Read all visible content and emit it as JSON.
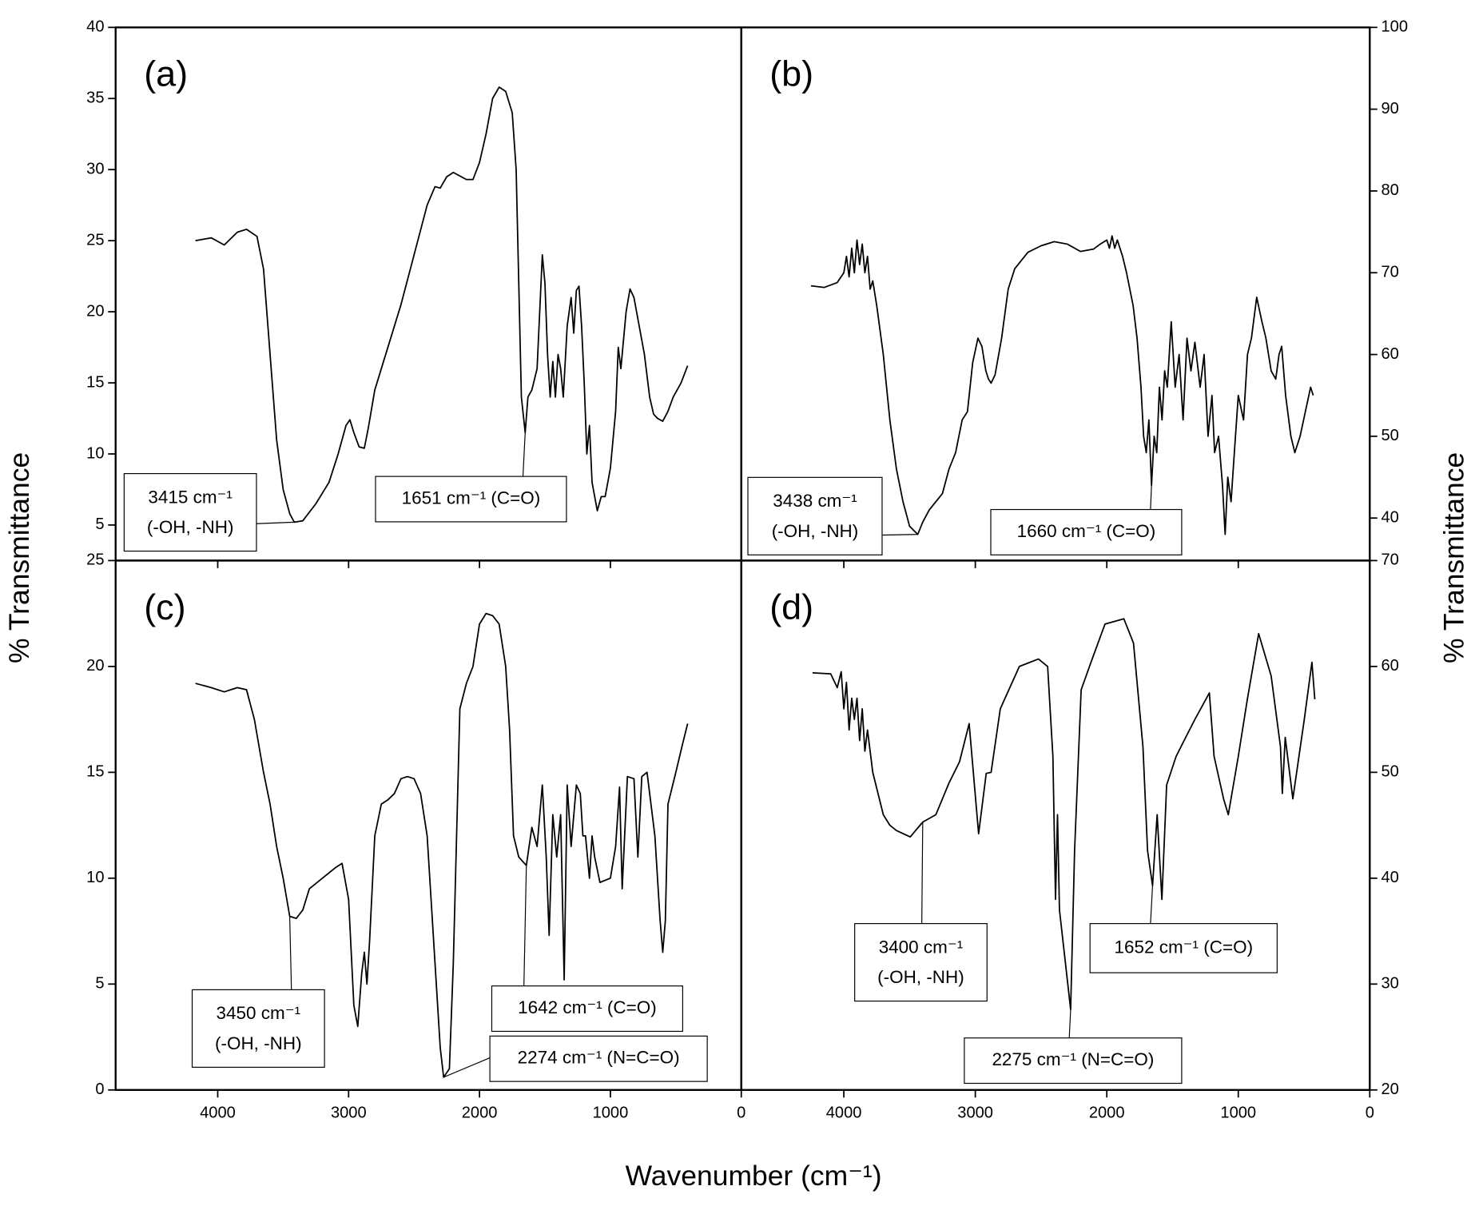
{
  "x_label": "Wavenumber (cm⁻¹)",
  "y_label": "% Transmittance",
  "chart_data": [
    {
      "type": "line",
      "title": "(a)",
      "color": "#000000",
      "xlim": [
        4780,
        0
      ],
      "ylim": [
        2.5,
        40
      ],
      "xticks": [
        4000,
        3000,
        2000,
        1000,
        0
      ],
      "yticks": [
        5,
        10,
        15,
        20,
        25,
        30,
        35,
        40
      ],
      "x": [
        4170,
        4050,
        3950,
        3850,
        3780,
        3700,
        3650,
        3600,
        3550,
        3500,
        3450,
        3415,
        3350,
        3250,
        3150,
        3080,
        3020,
        2990,
        2960,
        2920,
        2880,
        2850,
        2800,
        2700,
        2600,
        2500,
        2400,
        2340,
        2300,
        2250,
        2200,
        2100,
        2050,
        2000,
        1950,
        1900,
        1850,
        1800,
        1750,
        1720,
        1700,
        1680,
        1651,
        1630,
        1600,
        1560,
        1540,
        1520,
        1500,
        1480,
        1460,
        1440,
        1420,
        1400,
        1380,
        1360,
        1330,
        1300,
        1280,
        1260,
        1240,
        1220,
        1200,
        1180,
        1160,
        1140,
        1100,
        1070,
        1040,
        1000,
        960,
        940,
        920,
        880,
        850,
        820,
        780,
        740,
        700,
        670,
        640,
        600,
        560,
        520,
        460,
        410
      ],
      "values": [
        25.0,
        25.2,
        24.7,
        25.6,
        25.8,
        25.3,
        23,
        17,
        11,
        7.5,
        5.8,
        5.2,
        5.3,
        6.5,
        8,
        10,
        12,
        12.4,
        11.5,
        10.5,
        10.4,
        11.8,
        14.5,
        17.5,
        20.5,
        24,
        27.5,
        28.8,
        28.7,
        29.5,
        29.8,
        29.3,
        29.3,
        30.5,
        32.5,
        35.0,
        35.8,
        35.5,
        34,
        30,
        22,
        14,
        11.5,
        14,
        14.5,
        16,
        20,
        24,
        22,
        17,
        14,
        16.5,
        14,
        17,
        16,
        14,
        19,
        21,
        18.5,
        21.5,
        21.8,
        19,
        15,
        10,
        12,
        8,
        6,
        7,
        7,
        9,
        13,
        17.5,
        16,
        20,
        21.6,
        21,
        19,
        17,
        14,
        12.8,
        12.5,
        12.3,
        13,
        14,
        15,
        16.2
      ],
      "annotations": [
        {
          "x": 3415,
          "y": 5.2,
          "lines": [
            "3415 cm⁻¹",
            "(-OH, -NH)"
          ]
        },
        {
          "x": 1651,
          "y": 11.5,
          "lines": [
            "1651 cm⁻¹ (C=O)"
          ]
        }
      ]
    },
    {
      "type": "line",
      "title": "(b)",
      "color": "#000000",
      "xlim": [
        4780,
        0
      ],
      "ylim": [
        34.8,
        100
      ],
      "xticks": [
        4000,
        3000,
        2000,
        1000,
        0
      ],
      "yticks": [
        40,
        50,
        60,
        70,
        80,
        90,
        100
      ],
      "x": [
        4250,
        4150,
        4050,
        4000,
        3980,
        3960,
        3940,
        3920,
        3900,
        3880,
        3860,
        3840,
        3820,
        3800,
        3780,
        3750,
        3700,
        3650,
        3600,
        3550,
        3500,
        3438,
        3400,
        3350,
        3300,
        3250,
        3200,
        3150,
        3100,
        3060,
        3020,
        2980,
        2950,
        2920,
        2900,
        2880,
        2850,
        2800,
        2750,
        2700,
        2600,
        2500,
        2400,
        2300,
        2200,
        2100,
        2050,
        2000,
        1980,
        1960,
        1940,
        1920,
        1900,
        1880,
        1850,
        1800,
        1770,
        1740,
        1720,
        1700,
        1680,
        1660,
        1640,
        1620,
        1600,
        1580,
        1560,
        1540,
        1510,
        1480,
        1450,
        1420,
        1390,
        1360,
        1330,
        1290,
        1260,
        1230,
        1200,
        1180,
        1150,
        1120,
        1100,
        1080,
        1055,
        1030,
        1000,
        960,
        930,
        900,
        860,
        820,
        790,
        750,
        715,
        690,
        670,
        640,
        600,
        570,
        530,
        490,
        450,
        430
      ],
      "values": [
        68.4,
        68.2,
        68.8,
        70,
        72,
        69.5,
        73,
        70,
        74,
        71,
        73.5,
        70,
        72,
        68,
        69,
        66,
        60,
        52,
        46,
        42,
        39,
        38,
        39.5,
        41,
        42,
        43,
        46,
        48,
        52,
        53,
        59,
        62,
        61,
        58,
        57,
        56.5,
        57.5,
        62,
        68,
        70.5,
        72.5,
        73.3,
        73.8,
        73.5,
        72.6,
        72.9,
        73.5,
        74,
        73,
        74.5,
        73,
        74,
        73,
        72,
        70,
        66,
        62,
        56,
        50,
        48,
        52,
        44,
        50,
        48,
        56,
        52,
        58,
        56,
        64,
        56,
        60,
        52,
        62,
        58,
        61.5,
        56,
        60,
        50,
        55,
        48,
        50,
        44,
        38,
        45,
        42,
        48,
        55,
        52,
        60,
        62,
        67,
        64,
        62,
        58,
        57,
        60,
        61,
        55,
        50,
        48,
        50,
        53,
        56,
        55
      ],
      "annotations": [
        {
          "x": 3438,
          "y": 38,
          "lines": [
            "3438 cm⁻¹",
            "(-OH, -NH)"
          ]
        },
        {
          "x": 1660,
          "y": 44,
          "lines": [
            "1660 cm⁻¹ (C=O)"
          ]
        }
      ]
    },
    {
      "type": "line",
      "title": "(c)",
      "color": "#000000",
      "xlim": [
        4780,
        0
      ],
      "ylim": [
        0,
        25
      ],
      "xticks": [
        4000,
        3000,
        2000,
        1000,
        0
      ],
      "yticks": [
        0,
        5,
        10,
        15,
        20,
        25
      ],
      "x": [
        4170,
        4050,
        3950,
        3850,
        3780,
        3720,
        3650,
        3600,
        3550,
        3500,
        3450,
        3400,
        3350,
        3300,
        3200,
        3100,
        3050,
        3000,
        2960,
        2930,
        2900,
        2880,
        2860,
        2840,
        2800,
        2750,
        2700,
        2650,
        2600,
        2550,
        2500,
        2450,
        2400,
        2350,
        2300,
        2274,
        2230,
        2200,
        2150,
        2100,
        2050,
        2000,
        1950,
        1900,
        1850,
        1800,
        1770,
        1740,
        1700,
        1642,
        1600,
        1560,
        1520,
        1490,
        1468,
        1440,
        1410,
        1380,
        1353,
        1330,
        1300,
        1260,
        1230,
        1210,
        1190,
        1160,
        1140,
        1120,
        1080,
        1000,
        960,
        930,
        910,
        870,
        820,
        790,
        760,
        720,
        700,
        660,
        620,
        600,
        580,
        560,
        500,
        450,
        410
      ],
      "values": [
        19.2,
        19.0,
        18.8,
        19.0,
        18.9,
        17.5,
        15,
        13.5,
        11.5,
        10,
        8.2,
        8.1,
        8.5,
        9.5,
        10,
        10.5,
        10.7,
        9,
        4,
        3,
        5.5,
        6.5,
        5,
        7,
        12,
        13.5,
        13.7,
        14,
        14.7,
        14.8,
        14.7,
        14,
        12,
        7,
        2,
        0.6,
        1,
        6,
        18,
        19.2,
        20,
        22,
        22.5,
        22.4,
        22,
        20,
        17,
        12,
        11,
        10.6,
        12.4,
        11.5,
        14.4,
        11,
        7.3,
        13,
        11,
        13,
        5.2,
        14.4,
        11.5,
        14.4,
        14,
        12,
        12,
        10,
        12,
        11,
        9.8,
        10,
        11.5,
        14.3,
        9.5,
        14.8,
        14.7,
        11,
        14.8,
        15,
        14,
        12,
        8,
        6.5,
        8,
        13.5,
        15,
        16.3,
        17.3
      ],
      "annotations": [
        {
          "x": 3450,
          "y": 8.2,
          "lines": [
            "3450 cm⁻¹",
            "(-OH, -NH)"
          ]
        },
        {
          "x": 1642,
          "y": 10.6,
          "lines": [
            "1642 cm⁻¹ (C=O)"
          ]
        },
        {
          "x": 2274,
          "y": 0.6,
          "lines": [
            "2274 cm⁻¹ (N=C=O)"
          ]
        }
      ]
    },
    {
      "type": "line",
      "title": "(d)",
      "color": "#000000",
      "xlim": [
        4780,
        0
      ],
      "ylim": [
        20,
        70
      ],
      "xticks": [
        4000,
        3000,
        2000,
        1000,
        0
      ],
      "yticks": [
        20,
        30,
        40,
        50,
        60,
        70
      ],
      "x": [
        4238,
        4100,
        4050,
        4020,
        4000,
        3980,
        3960,
        3940,
        3920,
        3900,
        3880,
        3860,
        3840,
        3820,
        3780,
        3740,
        3700,
        3650,
        3600,
        3495,
        3400,
        3300,
        3200,
        3120,
        3047,
        2975,
        2917,
        2880,
        2810,
        2665,
        2520,
        2450,
        2410,
        2390,
        2375,
        2360,
        2275,
        2245,
        2195,
        2120,
        2014,
        1870,
        1797,
        1725,
        1690,
        1652,
        1617,
        1581,
        1545,
        1473,
        1400,
        1330,
        1220,
        1184,
        1112,
        1076,
        1000,
        931,
        845,
        750,
        679,
        665,
        643,
        585,
        498,
        440,
        418
      ],
      "values": [
        59.4,
        59.3,
        58,
        59.5,
        56,
        58.5,
        54,
        57,
        55,
        57,
        53,
        56,
        52,
        54,
        50,
        48,
        46,
        45,
        44.5,
        43.9,
        45.3,
        46,
        49,
        51,
        54.6,
        44.2,
        49.9,
        50,
        56,
        60,
        60.7,
        60,
        51.5,
        38,
        46,
        37,
        27.6,
        42.6,
        57.8,
        60.4,
        64,
        64.5,
        62.2,
        52.4,
        42.6,
        39.3,
        46,
        38,
        48.8,
        51.5,
        53.3,
        55,
        57.5,
        51.5,
        47.5,
        46,
        51.5,
        56.9,
        63.1,
        59.1,
        52.4,
        48,
        53.3,
        47.5,
        55,
        60.4,
        56.9
      ],
      "annotations": [
        {
          "x": 3400,
          "y": 45.3,
          "lines": [
            "3400 cm⁻¹",
            "(-OH, -NH)"
          ]
        },
        {
          "x": 2275,
          "y": 27.6,
          "lines": [
            "2275 cm⁻¹ (N=C=O)"
          ]
        },
        {
          "x": 1652,
          "y": 39.3,
          "lines": [
            "1652 cm⁻¹ (C=O)"
          ]
        }
      ]
    }
  ]
}
